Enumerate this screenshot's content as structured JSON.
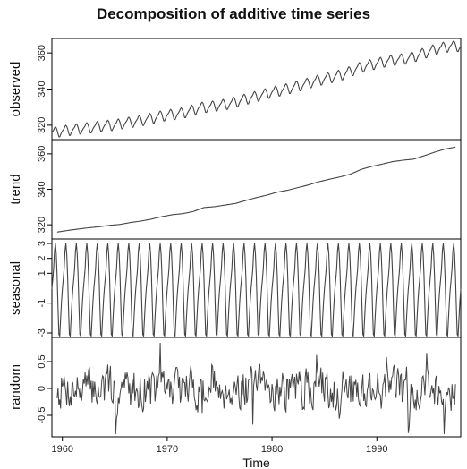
{
  "chart_data": {
    "type": "line",
    "title": "Decomposition of additive time series",
    "xlabel": "Time",
    "x_range": [
      1959,
      1998
    ],
    "x_ticks": [
      1960,
      1970,
      1980,
      1990
    ],
    "sample_step": 0.0833333,
    "panels": [
      {
        "name": "observed",
        "ylabel": "observed",
        "ylim": [
          312,
          368
        ],
        "y_ticks": [
          320,
          340,
          360
        ],
        "series": {
          "x_start": 1959.0,
          "x_step": 1.0,
          "trend_values": [
            315.9,
            316.8,
            317.6,
            318.3,
            318.9,
            319.7,
            320.2,
            321.3,
            322.1,
            323.2,
            324.6,
            325.7,
            326.3,
            327.5,
            329.7,
            330.2,
            331.1,
            332.0,
            333.7,
            335.3,
            336.7,
            338.4,
            339.5,
            341.0,
            342.5,
            344.3,
            345.7,
            347.0,
            348.6,
            351.2,
            352.9,
            354.2,
            355.6,
            356.4,
            357.0,
            358.9,
            360.9,
            362.7,
            363.8
          ],
          "seasonal_amplitude": 3.0
        }
      },
      {
        "name": "trend",
        "ylabel": "trend",
        "ylim": [
          312,
          368
        ],
        "y_ticks": [
          320,
          340,
          360
        ],
        "series": {
          "x_start": 1959.5,
          "x_step": 1.0,
          "values": [
            315.9,
            316.8,
            317.6,
            318.3,
            318.9,
            319.7,
            320.2,
            321.3,
            322.1,
            323.2,
            324.6,
            325.7,
            326.3,
            327.5,
            329.7,
            330.2,
            331.1,
            332.0,
            333.7,
            335.3,
            336.7,
            338.4,
            339.5,
            341.0,
            342.5,
            344.3,
            345.7,
            347.0,
            348.6,
            351.2,
            352.9,
            354.2,
            355.6,
            356.4,
            357.0,
            358.9,
            360.9,
            362.7,
            363.8
          ]
        }
      },
      {
        "name": "seasonal",
        "ylabel": "seasonal",
        "ylim": [
          -3.3,
          3.3
        ],
        "y_ticks": [
          -3,
          -1,
          1,
          2,
          3
        ],
        "series": {
          "monthly_values": [
            -0.05,
            0.6,
            1.3,
            2.5,
            3.0,
            2.3,
            0.8,
            -1.3,
            -3.1,
            -3.2,
            -2.0,
            -0.9
          ],
          "x_start": 1959.0,
          "x_end": 1998.0
        }
      },
      {
        "name": "random",
        "ylabel": "random",
        "ylim": [
          -0.9,
          0.95
        ],
        "y_ticks": [
          -0.5,
          0.0,
          0.5
        ],
        "series": {
          "x_start": 1959.5,
          "x_end": 1997.5,
          "range": [
            -0.85,
            0.85
          ],
          "seed": 7
        }
      }
    ]
  }
}
